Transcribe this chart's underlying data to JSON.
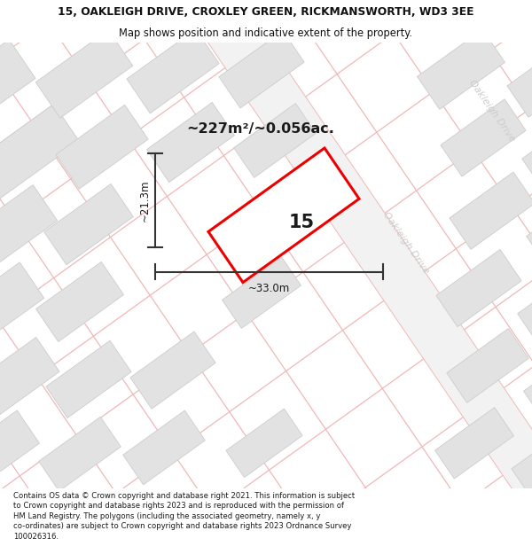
{
  "title_line1": "15, OAKLEIGH DRIVE, CROXLEY GREEN, RICKMANSWORTH, WD3 3EE",
  "title_line2": "Map shows position and indicative extent of the property.",
  "area_text": "~227m²/~0.056ac.",
  "label_number": "15",
  "dim_width": "~33.0m",
  "dim_height": "~21.3m",
  "road_label": "Oakleigh Drive",
  "footer_text": "Contains OS data © Crown copyright and database right 2021. This information is subject to Crown copyright and database rights 2023 and is reproduced with the permission of HM Land Registry. The polygons (including the associated geometry, namely x, y co-ordinates) are subject to Crown copyright and database rights 2023 Ordnance Survey 100026316.",
  "map_bg": "#f7f7f7",
  "block_fill": "#e2e2e2",
  "block_edge": "#cccccc",
  "road_fill": "#f0f0f0",
  "grid_color": "#f0b8b8",
  "property_edge": "#ee0000",
  "property_fill": "#ffffff",
  "dim_color": "#333333",
  "text_color": "#1a1a1a",
  "road_text_color": "#cccccc",
  "title_color": "#111111"
}
